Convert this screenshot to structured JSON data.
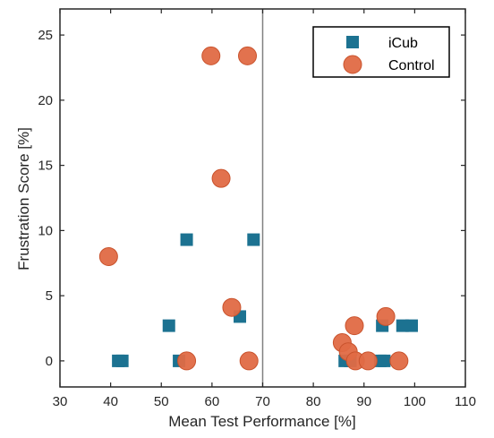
{
  "chart_data": {
    "type": "scatter",
    "xlabel": "Mean Test Performance [%]",
    "ylabel": "Frustration Score [%]",
    "xlim": [
      30,
      110
    ],
    "ylim": [
      -2,
      27
    ],
    "xticks": [
      30,
      40,
      50,
      60,
      70,
      80,
      90,
      100,
      110
    ],
    "yticks": [
      0,
      5,
      10,
      15,
      20,
      25
    ],
    "grid": false,
    "legend_position": "top-right",
    "vertical_reference_line": 70,
    "series": [
      {
        "name": "iCub",
        "marker": "square",
        "color": "#1c7291",
        "points": [
          [
            41.5,
            0
          ],
          [
            42.3,
            0
          ],
          [
            53.5,
            0
          ],
          [
            55,
            9.3
          ],
          [
            65.5,
            3.4
          ],
          [
            68.2,
            9.3
          ],
          [
            51.5,
            2.7
          ],
          [
            86.2,
            0
          ],
          [
            87.3,
            0
          ],
          [
            93.2,
            0
          ],
          [
            94,
            0
          ],
          [
            93.6,
            2.7
          ],
          [
            97.6,
            2.7
          ],
          [
            99.4,
            2.7
          ]
        ]
      },
      {
        "name": "Control",
        "marker": "circle",
        "color": "#e06a44",
        "points": [
          [
            39.6,
            8
          ],
          [
            55,
            0
          ],
          [
            59.8,
            23.4
          ],
          [
            61.8,
            14
          ],
          [
            63.9,
            4.1
          ],
          [
            67,
            23.4
          ],
          [
            67.3,
            0
          ],
          [
            85.7,
            1.4
          ],
          [
            86.9,
            0.7
          ],
          [
            88.1,
            2.7
          ],
          [
            88.3,
            0
          ],
          [
            90.8,
            0
          ],
          [
            94.3,
            3.4
          ],
          [
            96.9,
            0
          ]
        ]
      }
    ]
  }
}
